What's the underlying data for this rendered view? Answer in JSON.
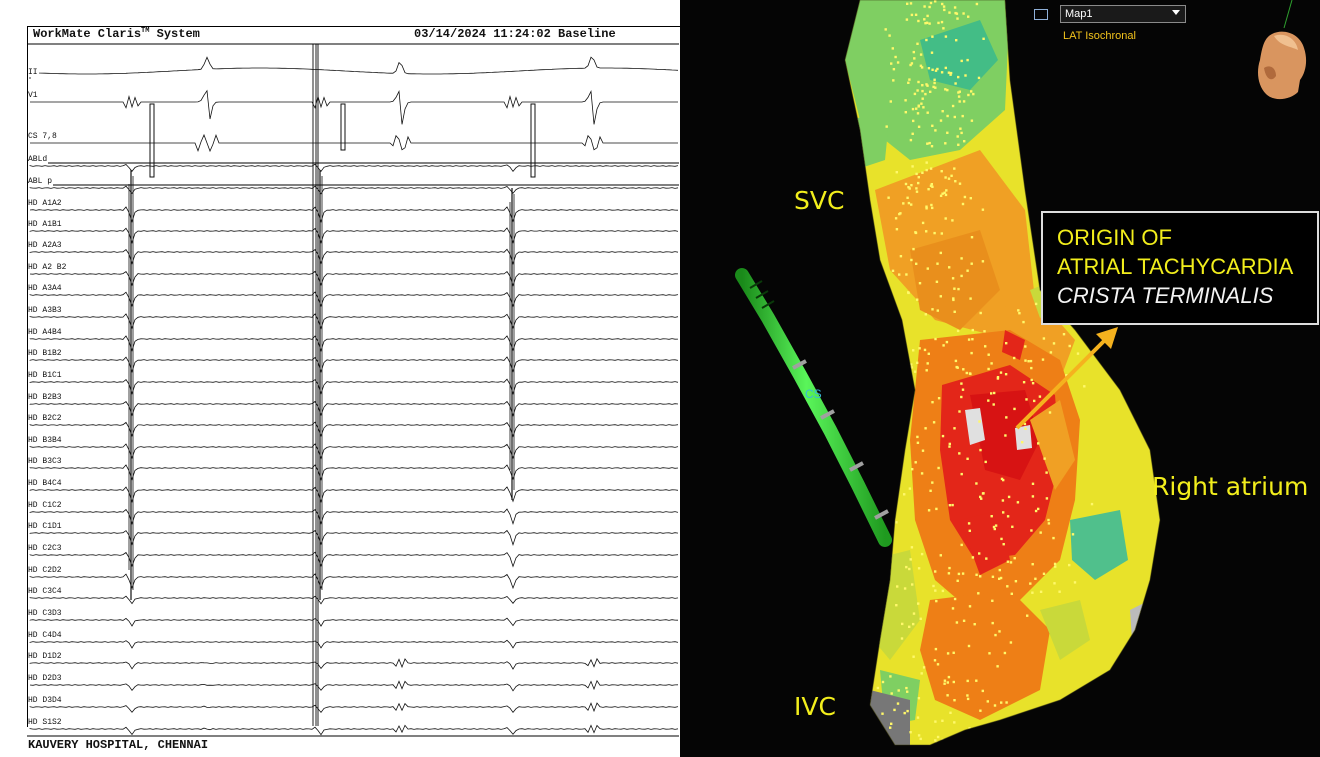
{
  "egm": {
    "system_name": "WorkMate Claris",
    "trademark": "TM",
    "system_suffix": "System",
    "datetime": "03/14/2024 11:24:02",
    "state": "Baseline",
    "footer": "KAUVERY HOSPITAL, CHENNAI",
    "channels": [
      "II",
      "V1",
      "CS 7,8",
      "ABLd",
      "ABL p",
      "HD A1A2",
      "HD A1B1",
      "HD A2A3",
      "HD A2 B2",
      "HD A3A4",
      "HD A3B3",
      "HD A4B4",
      "HD B1B2",
      "HD B1C1",
      "HD B2B3",
      "HD B2C2",
      "HD B3B4",
      "HD B3C3",
      "HD B4C4",
      "HD C1C2",
      "HD C1D1",
      "HD C2C3",
      "HD C2D2",
      "HD C3C4",
      "HD C3D3",
      "HD C4D4",
      "HD D1D2",
      "HD D2D3",
      "HD D3D4",
      "HD S1S2"
    ]
  },
  "map": {
    "map_select_value": "Map1",
    "map_type": "LAT Isochronal",
    "labels": {
      "svc": "SVC",
      "ivc": "IVC",
      "right_atrium": "Right atrium",
      "catheter": "CS"
    },
    "annotation": {
      "line1": "ORIGIN OF",
      "line2": "ATRIAL TACHYCARDIA",
      "line3": "CRISTA TERMINALIS"
    },
    "colors": {
      "label": "#f2ee1c",
      "arrow": "#f5b21e",
      "earliest": "#e01818",
      "late": "#f0e030",
      "latest": "#35c08a",
      "catheter": "#38e038"
    }
  }
}
